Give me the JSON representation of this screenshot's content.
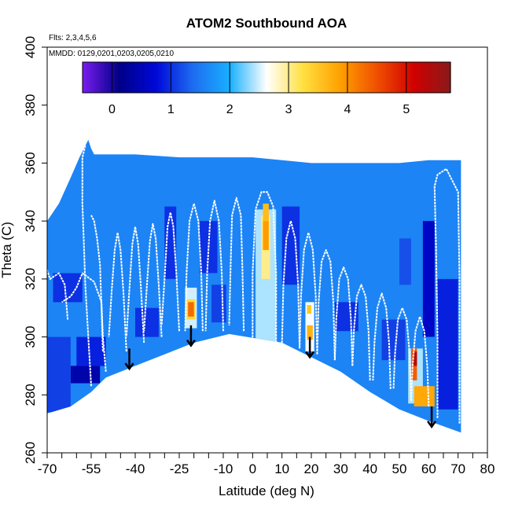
{
  "chart_data": {
    "type": "heatmap",
    "title": "ATOM2 Southbound AOA",
    "annotations": [
      "Flts: 2,3,4,5,6",
      "MMDD: 0129,0201,0203,0205,0210"
    ],
    "xlabel": "Latitude (deg N)",
    "ylabel": "Theta (C)",
    "xlim": [
      -70,
      80
    ],
    "ylim": [
      260,
      400
    ],
    "x_tick_labels": [
      "-70",
      "-55",
      "-40",
      "-25",
      "-10",
      "0",
      "10",
      "20",
      "30",
      "40",
      "50",
      "60",
      "70",
      "80"
    ],
    "y_tick_labels": [
      "260",
      "280",
      "300",
      "320",
      "340",
      "360",
      "380",
      "400"
    ],
    "colorbar": {
      "label_values": [
        "0",
        "1",
        "2",
        "3",
        "4",
        "5"
      ],
      "range": [
        -0.5,
        5.75
      ],
      "colors": [
        "#7a1cf0",
        "#000087",
        "#0008d8",
        "#1e6cf0",
        "#18b0ff",
        "#ffffff",
        "#ffe040",
        "#ffa000",
        "#f05000",
        "#d00000",
        "#8a1a1a"
      ]
    },
    "background_value": 1.6,
    "data_envelope": [
      [
        -72.5,
        273
      ],
      [
        -72.5,
        336
      ],
      [
        -70,
        340
      ],
      [
        -66,
        346
      ],
      [
        -62,
        355
      ],
      [
        -59,
        362
      ],
      [
        -56,
        368
      ],
      [
        -55,
        365
      ],
      [
        -54,
        363
      ],
      [
        -40,
        363
      ],
      [
        -25,
        362
      ],
      [
        -10,
        362
      ],
      [
        0,
        362
      ],
      [
        10,
        361
      ],
      [
        20,
        360
      ],
      [
        30,
        360
      ],
      [
        40,
        360
      ],
      [
        50,
        360
      ],
      [
        60,
        361
      ],
      [
        71,
        361
      ],
      [
        71,
        267
      ],
      [
        60,
        271
      ],
      [
        50,
        275
      ],
      [
        40,
        281
      ],
      [
        30,
        288
      ],
      [
        20,
        293
      ],
      [
        10,
        298
      ],
      [
        -8,
        301
      ],
      [
        -20,
        298
      ],
      [
        -30,
        294
      ],
      [
        -40,
        290
      ],
      [
        -50,
        286
      ],
      [
        -55,
        281
      ],
      [
        -62,
        276
      ],
      [
        -72,
        273
      ]
    ],
    "cells": [
      {
        "lat": [
          -23,
          -19
        ],
        "theta": [
          303,
          317
        ],
        "v": 2.5
      },
      {
        "lat": [
          -22.5,
          -19.5
        ],
        "theta": [
          306,
          313
        ],
        "v": 3.3
      },
      {
        "lat": [
          -22,
          -20
        ],
        "theta": [
          307,
          312
        ],
        "v": 4.3
      },
      {
        "lat": [
          1,
          8
        ],
        "theta": [
          296,
          344
        ],
        "v": 2.4
      },
      {
        "lat": [
          3,
          6
        ],
        "theta": [
          320,
          342
        ],
        "v": 3.0
      },
      {
        "lat": [
          3.5,
          5.5
        ],
        "theta": [
          330,
          340
        ],
        "v": 3.9
      },
      {
        "lat": [
          3.5,
          5.5
        ],
        "theta": [
          340,
          346
        ],
        "v": 3.6
      },
      {
        "lat": [
          18,
          21
        ],
        "theta": [
          295,
          312
        ],
        "v": 2.6
      },
      {
        "lat": [
          18.5,
          20.5
        ],
        "theta": [
          299,
          304
        ],
        "v": 3.7
      },
      {
        "lat": [
          18.5,
          20
        ],
        "theta": [
          308,
          311
        ],
        "v": 3.5
      },
      {
        "lat": [
          53,
          58
        ],
        "theta": [
          277,
          296
        ],
        "v": 2.4
      },
      {
        "lat": [
          54,
          56
        ],
        "theta": [
          285,
          296
        ],
        "v": 4.4
      },
      {
        "lat": [
          54.5,
          56
        ],
        "theta": [
          290,
          295
        ],
        "v": 5.3
      },
      {
        "lat": [
          55,
          62
        ],
        "theta": [
          276,
          283
        ],
        "v": 3.8
      },
      {
        "lat": [
          -62,
          -52
        ],
        "theta": [
          284,
          290
        ],
        "v": 0.4
      },
      {
        "lat": [
          -60,
          -50
        ],
        "theta": [
          290,
          300
        ],
        "v": 0.9
      },
      {
        "lat": [
          -68,
          -58
        ],
        "theta": [
          312,
          322
        ],
        "v": 1.0
      },
      {
        "lat": [
          -40,
          -32
        ],
        "theta": [
          300,
          310
        ],
        "v": 1.0
      },
      {
        "lat": [
          -30,
          -26
        ],
        "theta": [
          320,
          345
        ],
        "v": 1.0
      },
      {
        "lat": [
          -18,
          -12
        ],
        "theta": [
          322,
          340
        ],
        "v": 1.0
      },
      {
        "lat": [
          -14,
          -9
        ],
        "theta": [
          305,
          318
        ],
        "v": 1.1
      },
      {
        "lat": [
          10,
          16
        ],
        "theta": [
          318,
          345
        ],
        "v": 1.0
      },
      {
        "lat": [
          28,
          36
        ],
        "theta": [
          302,
          312
        ],
        "v": 1.0
      },
      {
        "lat": [
          44,
          52
        ],
        "theta": [
          292,
          306
        ],
        "v": 1.1
      },
      {
        "lat": [
          58,
          62
        ],
        "theta": [
          300,
          340
        ],
        "v": 0.6
      },
      {
        "lat": [
          63,
          70
        ],
        "theta": [
          275,
          320
        ],
        "v": 0.9
      },
      {
        "lat": [
          50,
          54
        ],
        "theta": [
          318,
          334
        ],
        "v": 1.2
      },
      {
        "lat": [
          -72,
          -62
        ],
        "theta": [
          274,
          300
        ],
        "v": 1.1
      }
    ],
    "tropopause_traces": [
      [
        [
          -43,
          295
        ],
        [
          -44,
          315
        ],
        [
          -45,
          330
        ],
        [
          -46,
          336
        ],
        [
          -47,
          330
        ],
        [
          -48,
          316
        ],
        [
          -49,
          300
        ]
      ],
      [
        [
          -37,
          298
        ],
        [
          -38,
          316
        ],
        [
          -39,
          332
        ],
        [
          -40,
          338
        ],
        [
          -41,
          332
        ],
        [
          -42,
          316
        ],
        [
          -43,
          300
        ]
      ],
      [
        [
          -31,
          300
        ],
        [
          -32,
          318
        ],
        [
          -33,
          334
        ],
        [
          -34,
          339
        ],
        [
          -35,
          333
        ],
        [
          -36,
          318
        ],
        [
          -37,
          302
        ]
      ],
      [
        [
          -25,
          302
        ],
        [
          -26,
          322
        ],
        [
          -27,
          338
        ],
        [
          -28,
          343
        ],
        [
          -29,
          338
        ],
        [
          -30,
          320
        ],
        [
          -31,
          304
        ]
      ],
      [
        [
          -17,
          302
        ],
        [
          -17.5,
          322
        ],
        [
          -18.5,
          340
        ],
        [
          -20,
          346
        ],
        [
          -21.5,
          340
        ],
        [
          -22.5,
          322
        ],
        [
          -23,
          302
        ]
      ],
      [
        [
          -10,
          302
        ],
        [
          -10.5,
          322
        ],
        [
          -11.5,
          340
        ],
        [
          -13,
          347
        ],
        [
          -14.5,
          340
        ],
        [
          -15.5,
          322
        ],
        [
          -16,
          302
        ]
      ],
      [
        [
          -3,
          302
        ],
        [
          -3.5,
          324
        ],
        [
          -4,
          342
        ],
        [
          -5.5,
          348
        ],
        [
          -7,
          342
        ],
        [
          -7.5,
          324
        ],
        [
          -8,
          304
        ]
      ],
      [
        [
          8,
          298
        ],
        [
          8,
          322
        ],
        [
          7,
          345
        ],
        [
          5,
          350
        ],
        [
          3,
          350
        ],
        [
          1,
          344
        ],
        [
          0,
          322
        ],
        [
          0,
          298
        ]
      ],
      [
        [
          16,
          296
        ],
        [
          15.5,
          318
        ],
        [
          14.5,
          334
        ],
        [
          13,
          340
        ],
        [
          11.5,
          334
        ],
        [
          10.5,
          318
        ],
        [
          10,
          298
        ]
      ],
      [
        [
          22,
          294
        ],
        [
          21.5,
          314
        ],
        [
          20.5,
          330
        ],
        [
          19,
          336
        ],
        [
          17.5,
          330
        ],
        [
          16.5,
          314
        ],
        [
          16,
          296
        ]
      ],
      [
        [
          28,
          292
        ],
        [
          27.5,
          312
        ],
        [
          26.5,
          326
        ],
        [
          25,
          330
        ],
        [
          23.5,
          326
        ],
        [
          22.5,
          312
        ],
        [
          22,
          294
        ]
      ],
      [
        [
          34,
          290
        ],
        [
          33.5,
          306
        ],
        [
          32.5,
          320
        ],
        [
          31,
          324
        ],
        [
          29.5,
          320
        ],
        [
          28.5,
          306
        ],
        [
          28,
          292
        ]
      ],
      [
        [
          40,
          285
        ],
        [
          39.5,
          302
        ],
        [
          38.5,
          314
        ],
        [
          37,
          318
        ],
        [
          35.5,
          314
        ],
        [
          34.5,
          302
        ],
        [
          34,
          290
        ]
      ],
      [
        [
          47,
          282
        ],
        [
          46.5,
          298
        ],
        [
          45.5,
          310
        ],
        [
          44,
          315
        ],
        [
          42.5,
          310
        ],
        [
          41.5,
          298
        ],
        [
          41,
          285
        ]
      ],
      [
        [
          54,
          278
        ],
        [
          53.5,
          294
        ],
        [
          52.5,
          306
        ],
        [
          51,
          310
        ],
        [
          49.5,
          306
        ],
        [
          48.5,
          294
        ],
        [
          48,
          282
        ]
      ],
      [
        [
          60,
          276
        ],
        [
          59.5,
          290
        ],
        [
          58.5,
          302
        ],
        [
          57,
          307
        ],
        [
          55.5,
          302
        ],
        [
          54.5,
          290
        ],
        [
          54,
          278
        ]
      ],
      [
        [
          63,
          272
        ],
        [
          63,
          300
        ],
        [
          62.5,
          330
        ],
        [
          62,
          352
        ],
        [
          63,
          356
        ],
        [
          66,
          358
        ],
        [
          68,
          354
        ],
        [
          70,
          350
        ],
        [
          70.5,
          320
        ],
        [
          70.5,
          270
        ]
      ],
      [
        [
          -55,
          283
        ],
        [
          -56,
          300
        ],
        [
          -57,
          318
        ],
        [
          -57.5,
          332
        ],
        [
          -58,
          346
        ],
        [
          -58,
          362
        ],
        [
          -57,
          366
        ]
      ],
      [
        [
          -63,
          306
        ],
        [
          -64,
          318
        ],
        [
          -66,
          322
        ],
        [
          -69,
          320
        ],
        [
          -71,
          326
        ],
        [
          -72,
          334
        ]
      ],
      [
        [
          -50,
          288
        ],
        [
          -51,
          300
        ],
        [
          -51.5,
          312
        ],
        [
          -54,
          319
        ],
        [
          -58,
          322
        ],
        [
          -60,
          317
        ],
        [
          -62,
          314
        ],
        [
          -65,
          312
        ]
      ],
      [
        [
          -51,
          295
        ],
        [
          -51.5,
          310
        ],
        [
          -52,
          325
        ],
        [
          -53,
          334
        ],
        [
          -54,
          340
        ],
        [
          -55,
          342
        ]
      ]
    ],
    "arrows": [
      {
        "lat": -42,
        "theta_from": 296,
        "theta_to": 289
      },
      {
        "lat": -21,
        "theta_from": 304,
        "theta_to": 297
      },
      {
        "lat": 19.5,
        "theta_from": 300,
        "theta_to": 293
      },
      {
        "lat": 61,
        "theta_from": 276,
        "theta_to": 269
      }
    ]
  }
}
